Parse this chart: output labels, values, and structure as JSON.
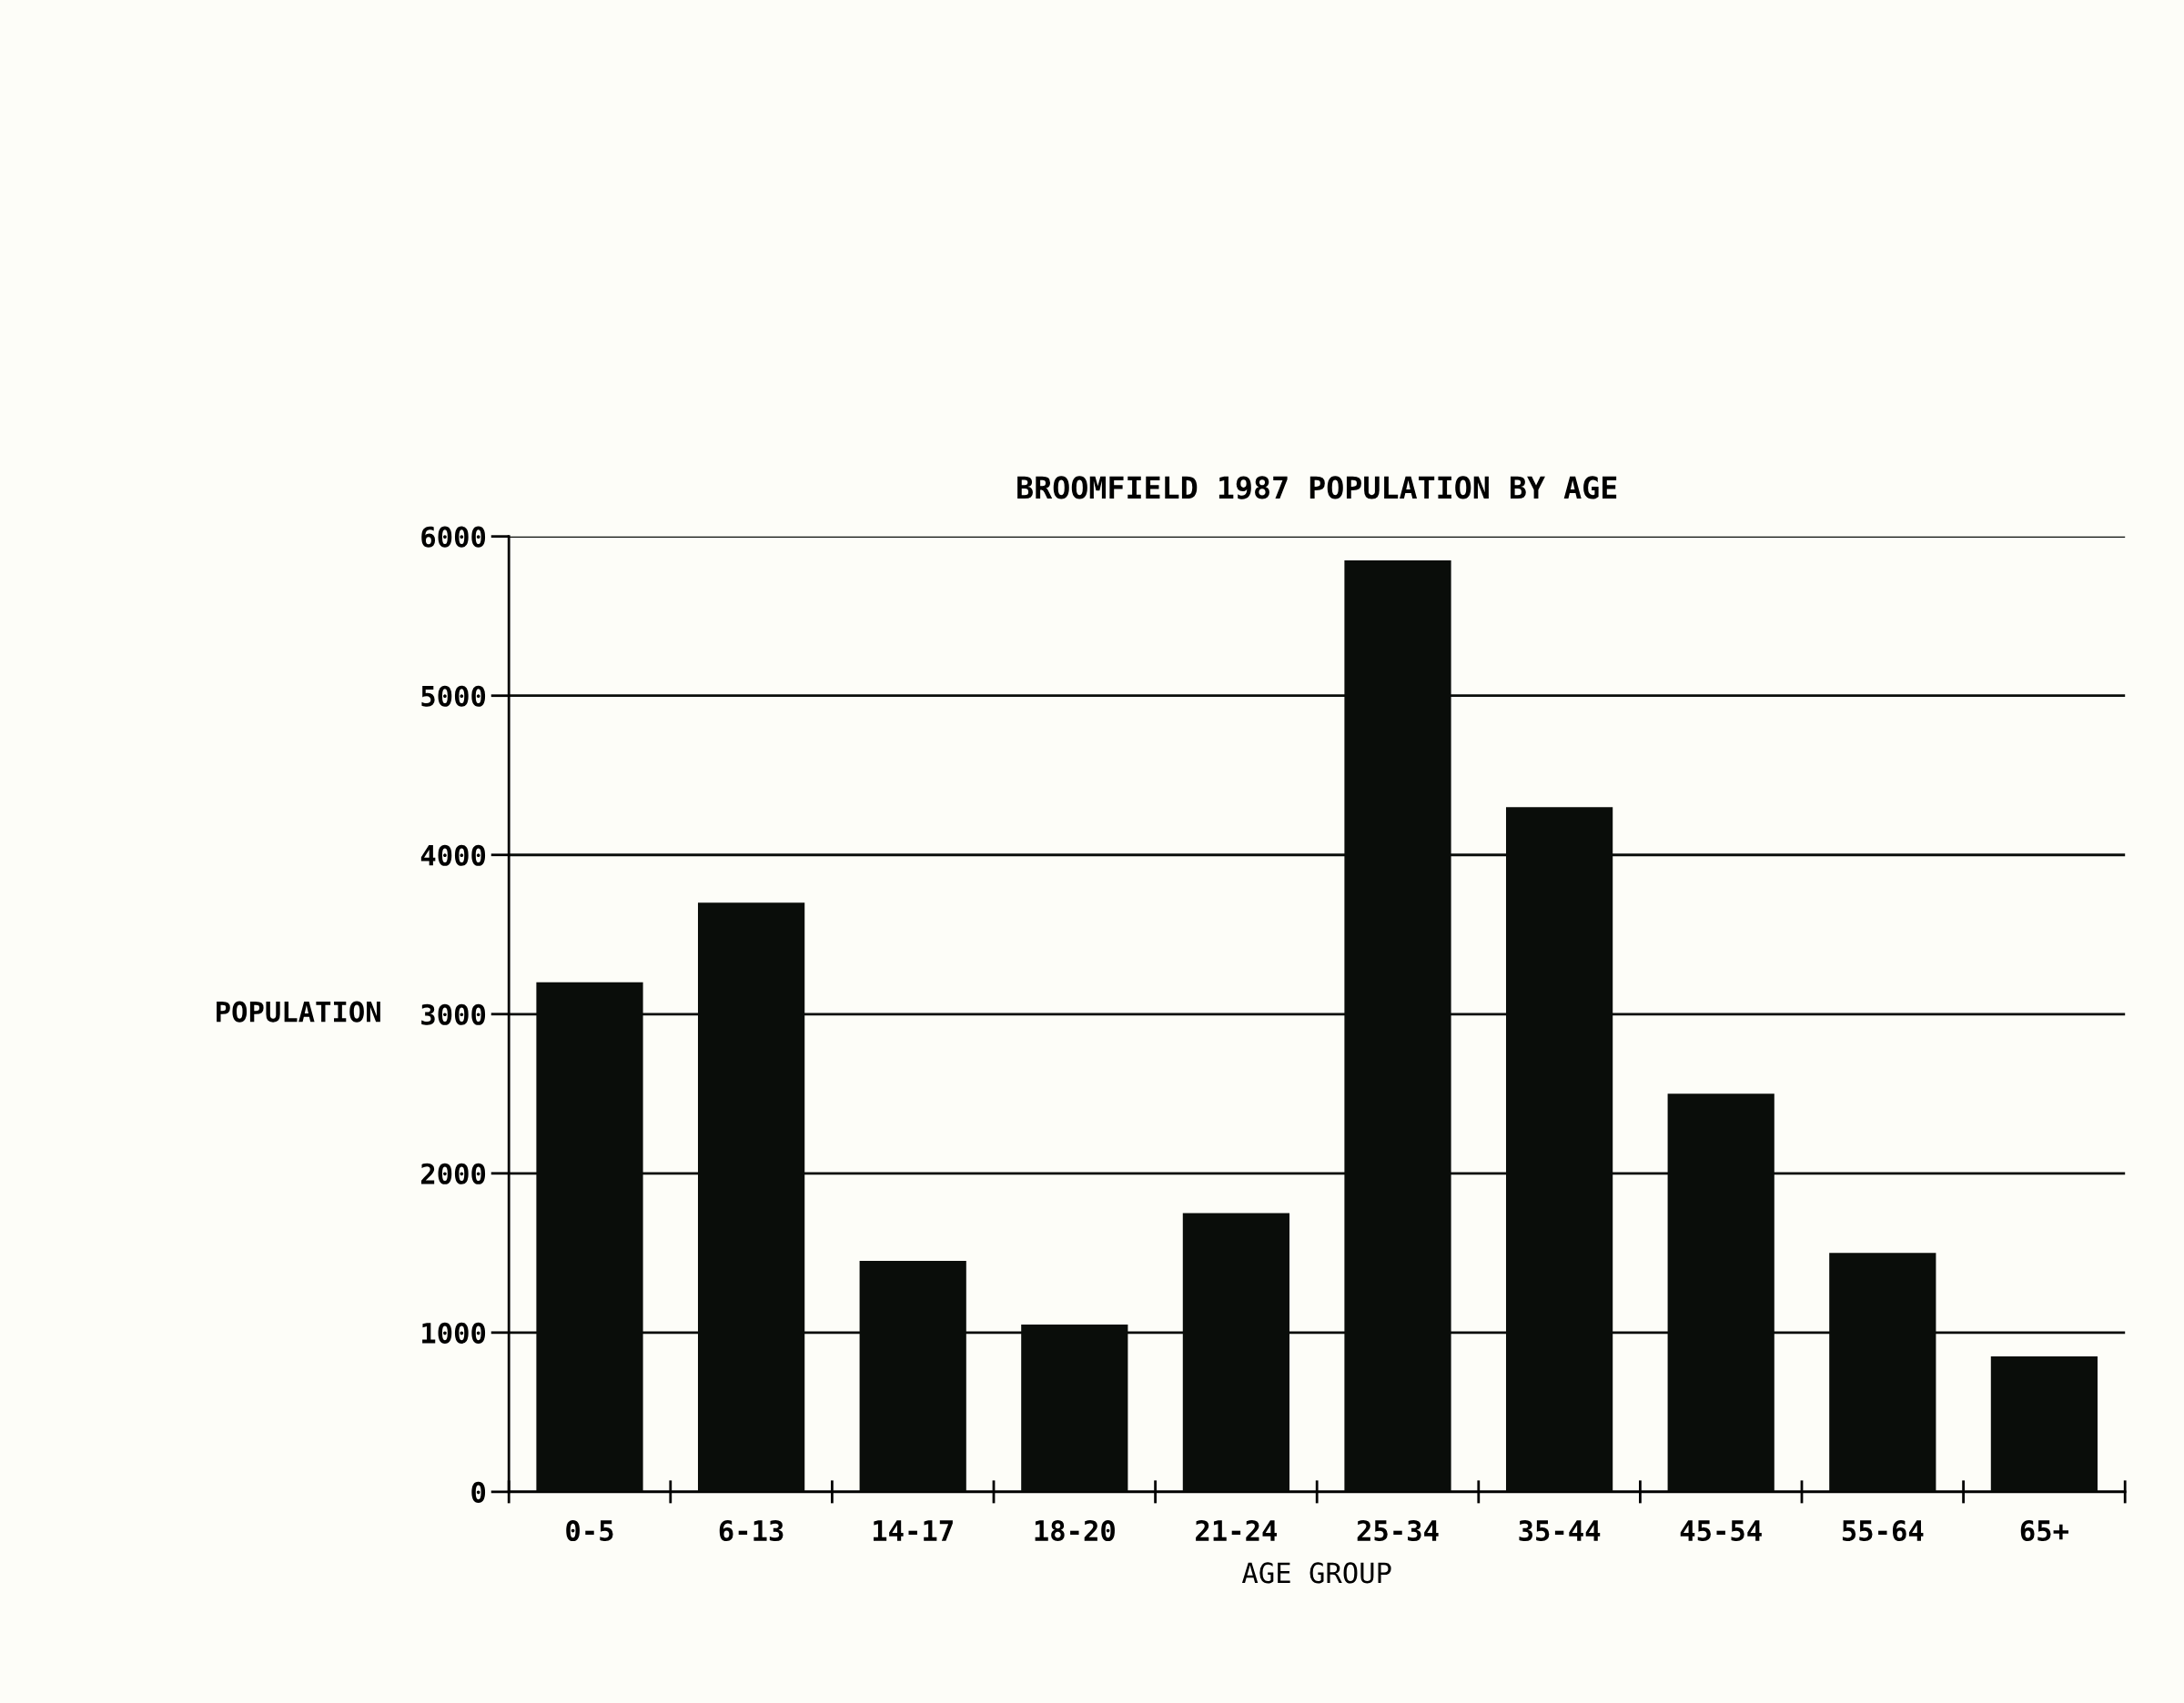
{
  "chart_data": {
    "type": "bar",
    "title": "BROOMFIELD 1987 POPULATION BY AGE",
    "xlabel": "AGE GROUP",
    "ylabel": "POPULATION",
    "categories": [
      "0-5",
      "6-13",
      "14-17",
      "18-20",
      "21-24",
      "25-34",
      "35-44",
      "45-54",
      "55-64",
      "65+"
    ],
    "values": [
      3200,
      3700,
      1450,
      1050,
      1750,
      5850,
      4300,
      2500,
      1500,
      850
    ],
    "color": "#0a0d0a",
    "ylim": [
      0,
      6000
    ],
    "yticks": [
      0,
      1000,
      2000,
      3000,
      4000,
      5000,
      6000
    ],
    "grid": "y",
    "legend": false
  }
}
